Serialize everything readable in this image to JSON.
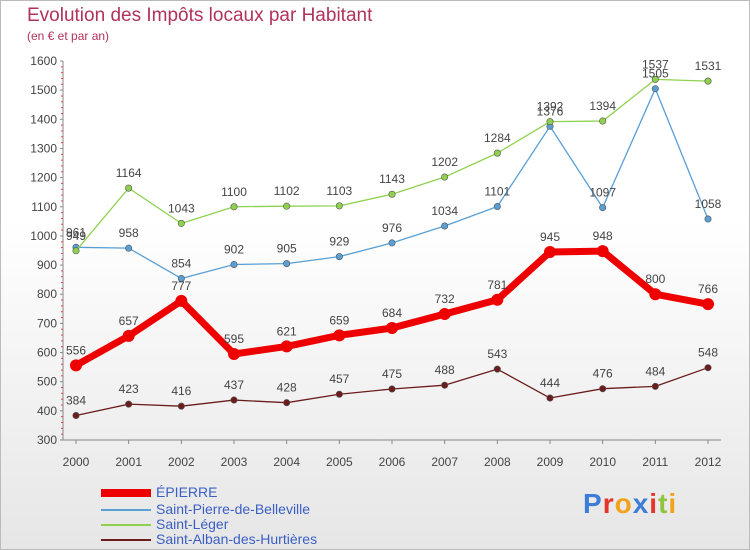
{
  "title": "Evolution des Impôts locaux par Habitant",
  "subtitle": "(en € et par an)",
  "logo_text": "Proxiti",
  "chart_data": {
    "type": "line",
    "x": [
      "2000",
      "2001",
      "2002",
      "2003",
      "2004",
      "2005",
      "2006",
      "2007",
      "2008",
      "2009",
      "2010",
      "2011",
      "2012"
    ],
    "ylim": [
      300,
      1600
    ],
    "yticks": [
      300,
      400,
      500,
      600,
      700,
      800,
      900,
      1000,
      1100,
      1200,
      1300,
      1400,
      1500,
      1600
    ],
    "grid": false,
    "legend_position": "bottom-left",
    "series": [
      {
        "name": "ÉPIERRE",
        "color": "#ee0000",
        "values": [
          556,
          657,
          777,
          595,
          621,
          659,
          684,
          732,
          781,
          945,
          948,
          800,
          766
        ]
      },
      {
        "name": "Saint-Pierre-de-Belleville",
        "color": "#5a9fd4",
        "values": [
          961,
          958,
          854,
          902,
          905,
          929,
          976,
          1034,
          1101,
          1376,
          1097,
          1505,
          1058
        ]
      },
      {
        "name": "Saint-Léger",
        "color": "#8fd14f",
        "values": [
          949,
          1164,
          1043,
          1100,
          1102,
          1103,
          1143,
          1202,
          1284,
          1392,
          1394,
          1537,
          1531
        ]
      },
      {
        "name": "Saint-Alban-des-Hurtières",
        "color": "#6b1d1d",
        "values": [
          384,
          423,
          416,
          437,
          428,
          457,
          475,
          488,
          543,
          444,
          476,
          484,
          548
        ]
      }
    ]
  }
}
